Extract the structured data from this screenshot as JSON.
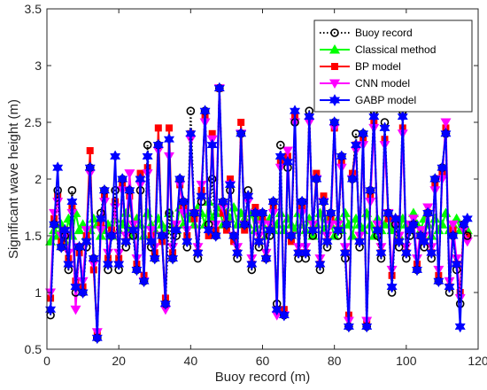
{
  "chart_data": {
    "type": "line",
    "xlabel": "Buoy record (m)",
    "ylabel": "Significant wave height (m)",
    "xlim": [
      0,
      120
    ],
    "ylim": [
      0.5,
      3.5
    ],
    "xticks": [
      0,
      20,
      40,
      60,
      80,
      100,
      120
    ],
    "yticks": [
      0.5,
      1,
      1.5,
      2,
      2.5,
      3,
      3.5
    ],
    "xtick_labels": [
      "0",
      "20",
      "40",
      "60",
      "80",
      "100",
      "120"
    ],
    "ytick_labels": [
      "0.5",
      "1",
      "1.5",
      "2",
      "2.5",
      "3",
      "3.5"
    ],
    "grid": false,
    "legend_position": "top-right",
    "x": [
      1,
      2,
      3,
      4,
      5,
      6,
      7,
      8,
      9,
      10,
      11,
      12,
      13,
      14,
      15,
      16,
      17,
      18,
      19,
      20,
      21,
      22,
      23,
      24,
      25,
      26,
      27,
      28,
      29,
      30,
      31,
      32,
      33,
      34,
      35,
      36,
      37,
      38,
      39,
      40,
      41,
      42,
      43,
      44,
      45,
      46,
      47,
      48,
      49,
      50,
      51,
      52,
      53,
      54,
      55,
      56,
      57,
      58,
      59,
      60,
      61,
      62,
      63,
      64,
      65,
      66,
      67,
      68,
      69,
      70,
      71,
      72,
      73,
      74,
      75,
      76,
      77,
      78,
      79,
      80,
      81,
      82,
      83,
      84,
      85,
      86,
      87,
      88,
      89,
      90,
      91,
      92,
      93,
      94,
      95,
      96,
      97,
      98,
      99,
      100,
      101,
      102,
      103,
      104,
      105,
      106,
      107,
      108,
      109,
      110,
      111,
      112,
      113,
      114,
      115,
      116,
      117
    ],
    "series": [
      {
        "name": "Buoy record",
        "color": "#000000",
        "marker": "circle",
        "line": "dotted",
        "values": [
          0.8,
          1.6,
          1.9,
          1.4,
          1.5,
          1.2,
          1.9,
          1.0,
          1.4,
          1.0,
          1.4,
          2.1,
          1.3,
          0.6,
          1.7,
          1.9,
          1.2,
          1.5,
          1.9,
          1.2,
          2.0,
          1.4,
          1.9,
          1.5,
          1.2,
          1.9,
          1.1,
          2.3,
          1.4,
          1.3,
          2.3,
          1.5,
          0.9,
          1.7,
          1.3,
          1.5,
          2.0,
          1.8,
          1.4,
          2.6,
          1.7,
          1.3,
          1.8,
          2.6,
          1.6,
          2.0,
          1.5,
          2.8,
          1.8,
          1.6,
          1.9,
          1.5,
          1.3,
          2.4,
          1.6,
          1.9,
          1.2,
          1.7,
          1.4,
          1.7,
          1.3,
          1.5,
          1.8,
          0.9,
          2.3,
          0.8,
          2.1,
          1.5,
          2.5,
          1.3,
          1.8,
          1.3,
          2.6,
          1.5,
          2.0,
          1.2,
          1.8,
          1.4,
          1.7,
          2.5,
          1.5,
          2.2,
          1.3,
          0.7,
          2.0,
          2.4,
          1.4,
          2.4,
          0.7,
          1.9,
          2.6,
          1.5,
          1.3,
          2.5,
          1.7,
          1.0,
          1.6,
          1.4,
          2.6,
          1.3,
          1.5,
          1.6,
          1.2,
          1.5,
          1.4,
          1.7,
          1.3,
          2.0,
          1.1,
          2.1,
          2.4,
          1.0,
          1.5,
          1.2,
          0.9,
          1.6,
          1.5
        ]
      },
      {
        "name": "Classical method",
        "color": "#00ff00",
        "marker": "triangle-up",
        "line": "solid",
        "values": [
          1.45,
          1.55,
          1.5,
          1.6,
          1.45,
          1.65,
          1.5,
          1.7,
          1.55,
          1.6,
          1.5,
          1.55,
          1.65,
          1.6,
          1.5,
          1.55,
          1.6,
          1.5,
          1.65,
          1.55,
          1.6,
          1.7,
          1.55,
          1.5,
          1.65,
          1.6,
          1.5,
          1.7,
          1.6,
          1.55,
          1.65,
          1.6,
          1.55,
          1.7,
          1.6,
          1.55,
          1.75,
          1.6,
          1.7,
          1.65,
          1.6,
          1.75,
          1.7,
          1.6,
          1.8,
          1.65,
          1.7,
          1.75,
          1.6,
          1.7,
          1.65,
          1.75,
          1.6,
          1.7,
          1.65,
          1.6,
          1.7,
          1.55,
          1.65,
          1.6,
          1.5,
          1.65,
          1.55,
          1.6,
          1.7,
          1.55,
          1.65,
          1.6,
          1.55,
          1.7,
          1.6,
          1.55,
          1.65,
          1.5,
          1.6,
          1.7,
          1.55,
          1.65,
          1.6,
          1.5,
          1.65,
          1.55,
          1.7,
          1.6,
          1.5,
          1.65,
          1.6,
          1.55,
          1.7,
          1.6,
          1.5,
          1.65,
          1.55,
          1.6,
          1.7,
          1.55,
          1.6,
          1.5,
          1.65,
          1.6,
          1.55,
          1.7,
          1.6,
          1.55,
          1.65,
          1.6,
          1.5,
          1.65,
          1.55,
          1.6,
          1.7,
          1.55,
          1.6,
          1.65,
          1.55,
          1.6,
          1.55
        ]
      },
      {
        "name": "BP model",
        "color": "#ff0000",
        "marker": "square",
        "line": "solid",
        "values": [
          0.95,
          1.65,
          1.85,
          1.45,
          1.55,
          1.3,
          1.75,
          1.1,
          1.35,
          1.05,
          1.5,
          2.25,
          1.2,
          0.65,
          1.6,
          1.85,
          1.3,
          1.55,
          1.8,
          1.3,
          1.95,
          1.45,
          1.85,
          1.55,
          1.25,
          2.05,
          1.15,
          2.1,
          1.5,
          1.35,
          2.45,
          1.45,
          0.95,
          2.45,
          1.35,
          1.55,
          1.95,
          1.75,
          1.5,
          2.4,
          1.65,
          1.35,
          1.9,
          2.55,
          1.5,
          2.4,
          1.55,
          2.8,
          1.7,
          1.55,
          2.0,
          1.45,
          1.35,
          2.5,
          1.55,
          1.85,
          1.25,
          1.75,
          1.45,
          1.65,
          1.3,
          1.55,
          1.75,
          0.85,
          2.15,
          0.85,
          2.2,
          1.45,
          2.55,
          1.35,
          1.75,
          1.35,
          2.55,
          1.55,
          2.05,
          1.25,
          1.85,
          1.45,
          1.65,
          2.45,
          1.55,
          2.15,
          1.35,
          0.8,
          2.05,
          2.3,
          1.45,
          2.35,
          0.75,
          1.85,
          2.5,
          1.55,
          1.35,
          2.35,
          1.65,
          1.15,
          1.65,
          1.45,
          2.45,
          1.35,
          1.55,
          1.6,
          1.25,
          1.5,
          1.45,
          1.7,
          1.35,
          1.95,
          1.15,
          2.05,
          2.45,
          1.05,
          1.55,
          1.25,
          1.0,
          1.6,
          1.5
        ]
      },
      {
        "name": "CNN model",
        "color": "#ff00ff",
        "marker": "triangle-down",
        "line": "solid",
        "values": [
          1.0,
          1.7,
          1.8,
          1.5,
          1.5,
          1.35,
          1.7,
          0.85,
          1.4,
          1.1,
          1.55,
          2.05,
          1.25,
          0.65,
          1.55,
          1.8,
          1.35,
          1.5,
          1.75,
          1.35,
          1.9,
          1.5,
          2.05,
          1.6,
          1.3,
          1.95,
          1.1,
          2.05,
          1.55,
          1.4,
          2.25,
          1.5,
          0.85,
          2.2,
          1.4,
          1.6,
          1.95,
          1.7,
          1.55,
          2.35,
          1.7,
          1.4,
          1.95,
          2.5,
          1.55,
          2.35,
          1.6,
          2.8,
          1.75,
          1.6,
          1.95,
          1.5,
          1.4,
          2.4,
          1.6,
          1.8,
          1.3,
          1.7,
          1.5,
          1.6,
          1.35,
          1.6,
          1.7,
          0.8,
          2.1,
          0.8,
          2.25,
          1.5,
          2.5,
          1.4,
          1.7,
          1.4,
          2.5,
          1.6,
          2.0,
          1.3,
          1.8,
          1.5,
          1.6,
          2.45,
          1.6,
          2.1,
          1.4,
          0.75,
          2.0,
          2.25,
          1.5,
          2.3,
          0.75,
          1.8,
          2.45,
          1.6,
          1.4,
          2.3,
          1.7,
          1.2,
          1.6,
          1.5,
          2.4,
          1.4,
          1.6,
          1.65,
          1.3,
          1.55,
          1.5,
          1.75,
          1.4,
          1.9,
          1.2,
          2.0,
          2.5,
          1.1,
          1.6,
          1.3,
          0.95,
          1.55,
          1.45
        ]
      },
      {
        "name": "GABP model",
        "color": "#0000ff",
        "marker": "hexagram",
        "line": "solid",
        "values": [
          0.85,
          1.6,
          2.1,
          1.4,
          1.55,
          1.25,
          1.8,
          1.05,
          1.4,
          1.0,
          1.45,
          2.1,
          1.3,
          0.6,
          1.65,
          1.9,
          1.25,
          1.5,
          2.2,
          1.25,
          2.0,
          1.45,
          1.9,
          1.55,
          1.2,
          2.0,
          1.1,
          2.2,
          1.45,
          1.3,
          2.3,
          1.5,
          0.9,
          2.35,
          1.3,
          1.55,
          2.0,
          1.8,
          1.45,
          2.4,
          1.7,
          1.35,
          1.85,
          2.6,
          1.55,
          2.3,
          1.5,
          2.8,
          1.8,
          1.6,
          1.95,
          1.5,
          1.35,
          2.4,
          1.6,
          1.85,
          1.25,
          1.7,
          1.45,
          1.7,
          1.3,
          1.55,
          1.8,
          0.85,
          2.2,
          0.8,
          2.15,
          1.5,
          2.6,
          1.35,
          1.8,
          1.35,
          2.55,
          1.55,
          2.0,
          1.25,
          1.8,
          1.45,
          1.7,
          2.5,
          1.55,
          2.2,
          1.35,
          0.7,
          2.0,
          2.3,
          1.45,
          2.4,
          0.7,
          1.9,
          2.55,
          1.55,
          1.35,
          2.45,
          1.7,
          1.05,
          1.65,
          1.45,
          2.55,
          1.35,
          1.55,
          1.6,
          1.2,
          1.5,
          1.45,
          1.7,
          1.35,
          2.0,
          1.1,
          2.1,
          2.4,
          1.05,
          1.5,
          1.25,
          0.7,
          1.6,
          1.65
        ]
      }
    ]
  }
}
